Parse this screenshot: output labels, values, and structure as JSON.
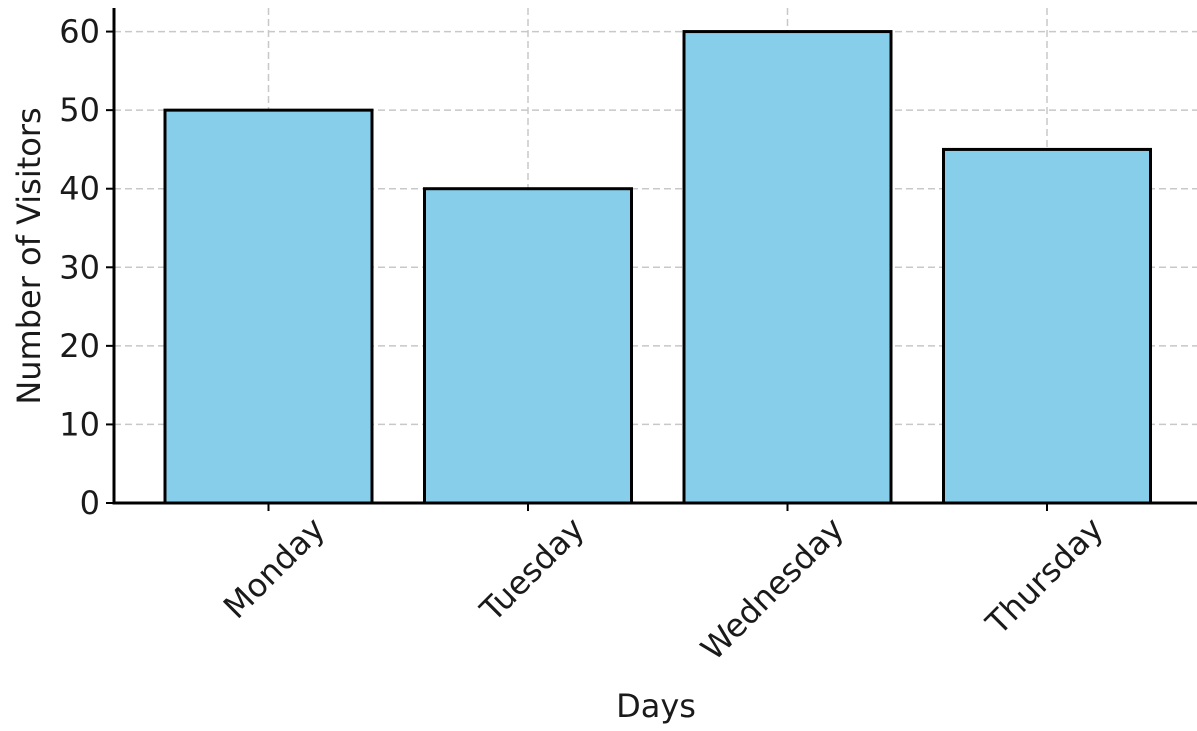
{
  "chart_data": {
    "type": "bar",
    "title": "",
    "xlabel": "Days",
    "ylabel": "Number of Visitors",
    "categories": [
      "Monday",
      "Tuesday",
      "Wednesday",
      "Thursday"
    ],
    "values": [
      50,
      40,
      60,
      45
    ],
    "ylim": [
      0,
      63
    ],
    "yticks": [
      0,
      10,
      20,
      30,
      40,
      50,
      60
    ],
    "grid": true,
    "bar_color": "#87CEEB",
    "bar_edge_color": "#000000",
    "grid_color": "#c8c8c8"
  }
}
